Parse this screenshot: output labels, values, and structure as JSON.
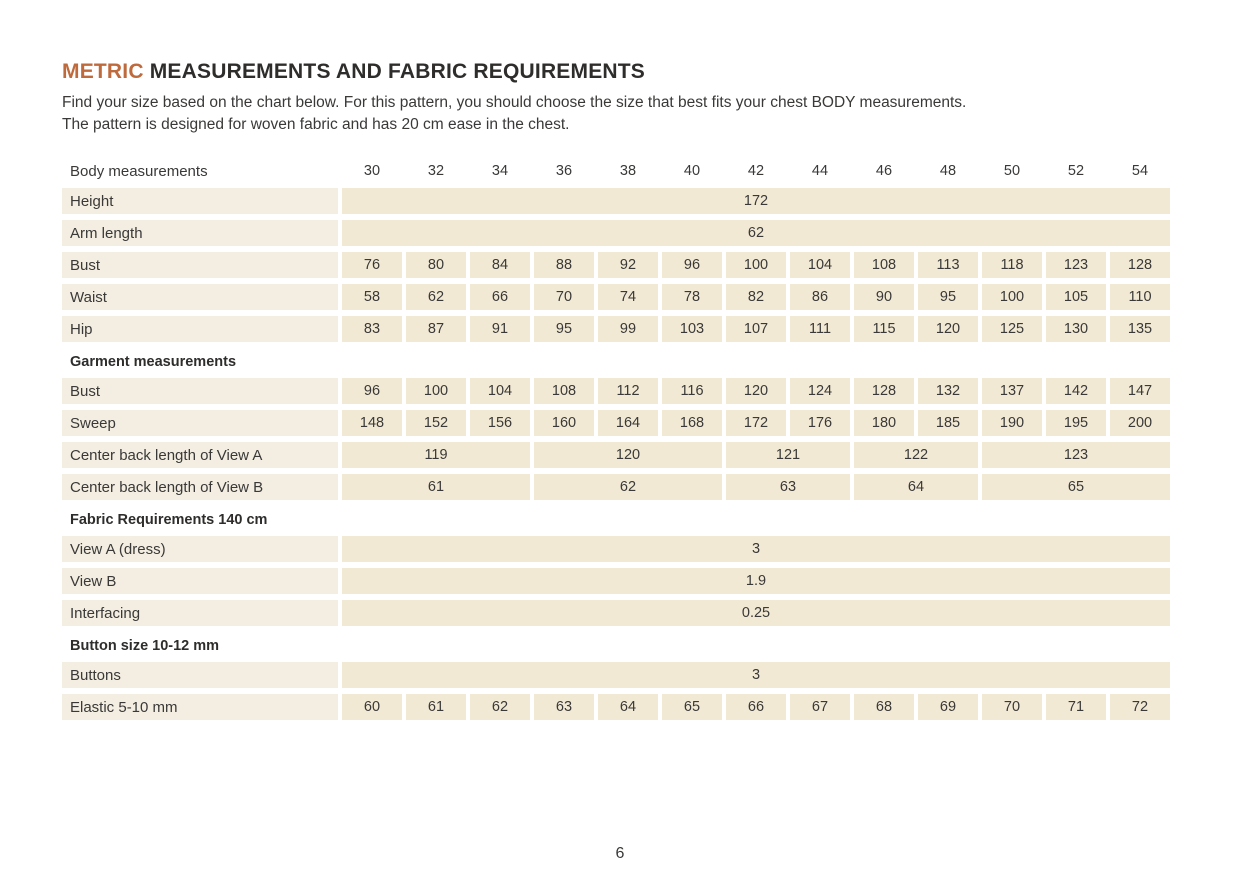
{
  "page": {
    "title_accent": "METRIC",
    "title_rest": " MEASUREMENTS AND FABRIC REQUIREMENTS",
    "intro_line1": "Find your size based on the chart below. For this pattern, you should choose the size that best fits your chest BODY measurements.",
    "intro_line2": "The pattern is designed for woven fabric and has 20 cm ease in the chest.",
    "page_number": "6"
  },
  "colors": {
    "accent": "#bf6a3c",
    "cell_bg": "#f2e9d4",
    "label_bg": "#f3eee1",
    "text": "#2e2d2c"
  },
  "table": {
    "header_label": "Body measurements",
    "sizes": [
      "30",
      "32",
      "34",
      "36",
      "38",
      "40",
      "42",
      "44",
      "46",
      "48",
      "50",
      "52",
      "54"
    ],
    "body": {
      "height": {
        "label": "Height",
        "value": "172"
      },
      "arm_length": {
        "label": "Arm length",
        "value": "62"
      },
      "bust": {
        "label": "Bust",
        "values": [
          "76",
          "80",
          "84",
          "88",
          "92",
          "96",
          "100",
          "104",
          "108",
          "113",
          "118",
          "123",
          "128"
        ]
      },
      "waist": {
        "label": "Waist",
        "values": [
          "58",
          "62",
          "66",
          "70",
          "74",
          "78",
          "82",
          "86",
          "90",
          "95",
          "100",
          "105",
          "110"
        ]
      },
      "hip": {
        "label": "Hip",
        "values": [
          "83",
          "87",
          "91",
          "95",
          "99",
          "103",
          "107",
          "111",
          "115",
          "120",
          "125",
          "130",
          "135"
        ]
      }
    },
    "garment_section": "Garment measurements",
    "garment": {
      "bust": {
        "label": "Bust",
        "values": [
          "96",
          "100",
          "104",
          "108",
          "112",
          "116",
          "120",
          "124",
          "128",
          "132",
          "137",
          "142",
          "147"
        ]
      },
      "sweep": {
        "label": "Sweep",
        "values": [
          "148",
          "152",
          "156",
          "160",
          "164",
          "168",
          "172",
          "176",
          "180",
          "185",
          "190",
          "195",
          "200"
        ]
      },
      "cbl_a": {
        "label": "Center back length of View A",
        "values": [
          "119",
          "120",
          "121",
          "122",
          "123"
        ]
      },
      "cbl_b": {
        "label": "Center back length of View  B",
        "values": [
          "61",
          "62",
          "63",
          "64",
          "65"
        ]
      }
    },
    "fabric_section": "Fabric Requirements 140 cm",
    "fabric": {
      "view_a": {
        "label": "View A (dress)",
        "value": "3"
      },
      "view_b": {
        "label": "View B",
        "value": "1.9"
      },
      "interfacing": {
        "label": "Interfacing",
        "value": "0.25"
      }
    },
    "button_section": "Button size 10-12 mm",
    "notions": {
      "buttons": {
        "label": "Buttons",
        "value": "3"
      },
      "elastic": {
        "label": "Elastic 5-10 mm",
        "values": [
          "60",
          "61",
          "62",
          "63",
          "64",
          "65",
          "66",
          "67",
          "68",
          "69",
          "70",
          "71",
          "72"
        ]
      }
    }
  }
}
